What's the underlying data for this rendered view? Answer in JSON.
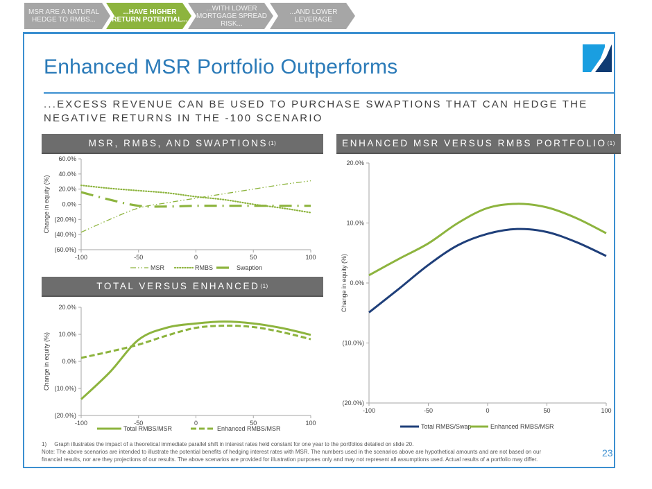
{
  "nav": {
    "steps": [
      {
        "line1": "MSR ARE A NATURAL",
        "line2": "HEDGE TO RMBS...",
        "line3": "",
        "active": false
      },
      {
        "line1": "...HAVE HIGHER",
        "line2": "RETURN POTENTIAL...",
        "line3": "",
        "active": true
      },
      {
        "line1": "...WITH LOWER",
        "line2": "MORTGAGE SPREAD",
        "line3": "RISK...",
        "active": false
      },
      {
        "line1": "...AND LOWER",
        "line2": "LEVERAGE",
        "line3": "",
        "active": false
      }
    ]
  },
  "colors": {
    "nav_gray": "#a6a6a6",
    "nav_green": "#8db43e",
    "frame_blue": "#3b8fd0",
    "title_blue": "#2a7ab8",
    "series_green": "#8db43e",
    "series_navy": "#1f3f7a",
    "header_gray": "#6d6d6d",
    "logo_light": "#1a9ee0",
    "logo_dark": "#0f3b73"
  },
  "page": {
    "title": "Enhanced MSR Portfolio Outperforms",
    "subtitle": "...EXCESS REVENUE CAN BE USED TO PURCHASE SWAPTIONS THAT CAN HEDGE THE NEGATIVE RETURNS IN THE -100 SCENARIO",
    "page_number": "23"
  },
  "sections": {
    "top_left": {
      "title": "MSR, RMBS, AND SWAPTIONS",
      "note": "(1)"
    },
    "bottom_left": {
      "title": "TOTAL VERSUS ENHANCED",
      "note": "(1)"
    },
    "right": {
      "title": "ENHANCED MSR VERSUS RMBS PORTFOLIO",
      "note": "(1)"
    }
  },
  "footnotes": {
    "line1": "1)     Graph illustrates the impact of a theoretical immediate parallel shift in interest rates held constant for one year to the portfolios detailed on slide 20.",
    "line2": "Note: The above scenarios are intended to illustrate the potential benefits of hedging interest rates with MSR. The numbers used in the scenarios above are hypothetical amounts and are not based on our",
    "line3": "financial results, nor are they projections of our results.  The above scenarios are provided for illustration purposes only and may not represent all assumptions used. Actual results of a portfolio may differ."
  },
  "chart_data": [
    {
      "id": "msr-rmbs-swaptions",
      "type": "line",
      "title": "MSR, RMBS, AND SWAPTIONS(1)",
      "xlabel": "",
      "ylabel": "Change in equity (%)",
      "x": [
        -100,
        -75,
        -50,
        -25,
        0,
        25,
        50,
        75,
        100
      ],
      "xticks": [
        "-100",
        "-50",
        "0",
        "50",
        "100"
      ],
      "xtick_values": [
        -100,
        -50,
        0,
        50,
        100
      ],
      "yticks": [
        "(60.0%)",
        "(40.0%)",
        "(20.0%)",
        "0.0%",
        "20.0%",
        "40.0%",
        "60.0%"
      ],
      "ytick_values": [
        -60,
        -40,
        -20,
        0,
        20,
        40,
        60
      ],
      "xlim": [
        -100,
        100
      ],
      "ylim": [
        -60,
        60
      ],
      "grid": false,
      "legend": "bottom",
      "series": [
        {
          "name": "MSR",
          "style": "dash-dot-dot",
          "values": [
            -37,
            -20,
            -5,
            2,
            8,
            14,
            20,
            26,
            31
          ]
        },
        {
          "name": "RMBS",
          "style": "dotted",
          "values": [
            25,
            21,
            18,
            15,
            10,
            6,
            0,
            -5,
            -11
          ]
        },
        {
          "name": "Swaption",
          "style": "long-dash-dot",
          "values": [
            16,
            6,
            -2,
            -3,
            -2,
            -2,
            -2,
            -2,
            -2
          ]
        }
      ]
    },
    {
      "id": "total-versus-enhanced",
      "type": "line",
      "title": "TOTAL VERSUS ENHANCED(1)",
      "xlabel": "",
      "ylabel": "Change in equity (%)",
      "x": [
        -100,
        -75,
        -50,
        -25,
        0,
        25,
        50,
        75,
        100
      ],
      "xticks": [
        "-100",
        "-50",
        "0",
        "50",
        "100"
      ],
      "xtick_values": [
        -100,
        -50,
        0,
        50,
        100
      ],
      "yticks": [
        "(20.0%)",
        "(10.0%)",
        "0.0%",
        "10.0%",
        "20.0%"
      ],
      "ytick_values": [
        -20,
        -10,
        0,
        10,
        20
      ],
      "xlim": [
        -100,
        100
      ],
      "ylim": [
        -20,
        20
      ],
      "grid": false,
      "legend": "bottom",
      "series": [
        {
          "name": "Total RMBS/MSR",
          "style": "solid",
          "values": [
            -14,
            -4,
            8,
            12.5,
            14,
            14.7,
            14,
            12.3,
            9.8
          ]
        },
        {
          "name": "Enhanced RMBS/MSR",
          "style": "dashed",
          "values": [
            1.3,
            3.6,
            6.2,
            9.6,
            12.4,
            13.2,
            12.7,
            10.8,
            8.2
          ]
        }
      ]
    },
    {
      "id": "enhanced-msr-vs-rmbs",
      "type": "line",
      "title": "ENHANCED MSR VERSUS RMBS PORTFOLIO(1)",
      "xlabel": "",
      "ylabel": "Change in equity (%)",
      "x": [
        -100,
        -75,
        -50,
        -25,
        0,
        25,
        50,
        75,
        100
      ],
      "xticks": [
        "-100",
        "-50",
        "0",
        "50",
        "100"
      ],
      "xtick_values": [
        -100,
        -50,
        0,
        50,
        100
      ],
      "yticks": [
        "(20.0%)",
        "(10.0%)",
        "0.0%",
        "10.0%",
        "20.0%"
      ],
      "ytick_values": [
        -20,
        -10,
        0,
        10,
        20
      ],
      "xlim": [
        -100,
        100
      ],
      "ylim": [
        -20,
        20
      ],
      "grid": false,
      "legend": "bottom",
      "series": [
        {
          "name": "Total RMBS/Swap",
          "style": "solid-navy",
          "values": [
            -4.9,
            -1,
            3,
            6.3,
            8.2,
            9,
            8.5,
            6.8,
            4.5
          ]
        },
        {
          "name": "Enhanced RMBS/MSR",
          "style": "solid-green",
          "values": [
            1.3,
            4,
            6.6,
            10,
            12.5,
            13.2,
            12.6,
            10.8,
            8.3
          ]
        }
      ]
    }
  ]
}
